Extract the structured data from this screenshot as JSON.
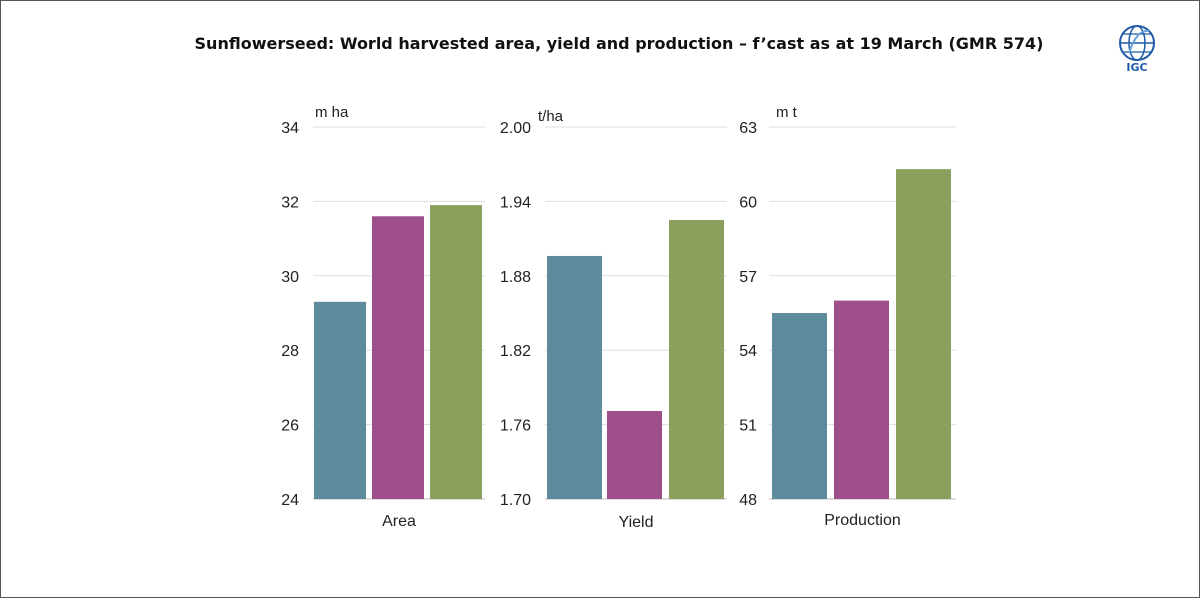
{
  "title": "Sunflowerseed: World harvested area, yield and production – f’cast as at 19 March (GMR 574)",
  "logo": {
    "text": "IGC",
    "icon": "igc-globe-icon"
  },
  "colors": {
    "series1": "#5e8a9e",
    "series2": "#9e4f8b",
    "series3": "#8aa05c",
    "grid": "#dddddd",
    "axis": "#bbbbbb"
  },
  "chart_data": [
    {
      "type": "bar",
      "category": "Area",
      "unit": "m ha",
      "ylim": [
        24,
        34
      ],
      "ticks": [
        "34",
        "32",
        "30",
        "28",
        "26",
        "24"
      ],
      "values": [
        29.3,
        31.6,
        31.9
      ]
    },
    {
      "type": "bar",
      "category": "Yield",
      "unit": "t/ha",
      "ylim": [
        1.7,
        2.0
      ],
      "ticks": [
        "2.00",
        "1.94",
        "1.88",
        "1.82",
        "1.76",
        "1.70"
      ],
      "values": [
        1.896,
        1.771,
        1.925
      ]
    },
    {
      "type": "bar",
      "category": "Production",
      "unit": "m t",
      "ylim": [
        48,
        63
      ],
      "ticks": [
        "63",
        "60",
        "57",
        "54",
        "51",
        "48"
      ],
      "values": [
        55.5,
        56.0,
        61.3
      ]
    }
  ]
}
